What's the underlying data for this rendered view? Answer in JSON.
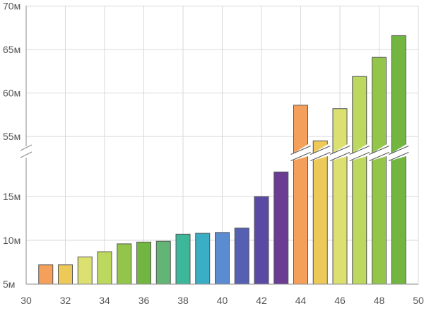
{
  "chart_data": {
    "type": "bar",
    "title": "",
    "xlabel": "",
    "ylabel": "",
    "xlim": [
      30,
      50
    ],
    "x_ticks": [
      "30",
      "32",
      "34",
      "36",
      "38",
      "40",
      "42",
      "44",
      "46",
      "48",
      "50"
    ],
    "y_ticks_lower": [
      {
        "value": 5000000,
        "label": "5м"
      },
      {
        "value": 10000000,
        "label": "10м"
      },
      {
        "value": 15000000,
        "label": "15м"
      }
    ],
    "y_ticks_upper": [
      {
        "value": 55000000,
        "label": "55м"
      },
      {
        "value": 60000000,
        "label": "60м"
      },
      {
        "value": 65000000,
        "label": "65м"
      },
      {
        "value": 70000000,
        "label": "70м"
      }
    ],
    "axis_break": true,
    "grid": "horizontal",
    "points": [
      {
        "x": 31,
        "y": 7200000,
        "color": "#f5a05a"
      },
      {
        "x": 32,
        "y": 7200000,
        "color": "#edc95a"
      },
      {
        "x": 33,
        "y": 8100000,
        "color": "#dbe070"
      },
      {
        "x": 34,
        "y": 8700000,
        "color": "#bcd85e"
      },
      {
        "x": 35,
        "y": 9600000,
        "color": "#93c54b"
      },
      {
        "x": 36,
        "y": 9800000,
        "color": "#72b540"
      },
      {
        "x": 37,
        "y": 9900000,
        "color": "#62b574"
      },
      {
        "x": 38,
        "y": 10700000,
        "color": "#3db79a"
      },
      {
        "x": 39,
        "y": 10800000,
        "color": "#3aaec4"
      },
      {
        "x": 40,
        "y": 10900000,
        "color": "#5b8bd0"
      },
      {
        "x": 41,
        "y": 11400000,
        "color": "#5560b2"
      },
      {
        "x": 42,
        "y": 15000000,
        "color": "#5b4aa3"
      },
      {
        "x": 43,
        "y": 17800000,
        "color": "#6a3c92"
      },
      {
        "x": 44,
        "y": 58600000,
        "color": "#f5a05a"
      },
      {
        "x": 45,
        "y": 54500000,
        "color": "#edc95a"
      },
      {
        "x": 46,
        "y": 58200000,
        "color": "#dbe070"
      },
      {
        "x": 47,
        "y": 61900000,
        "color": "#bcd85e"
      },
      {
        "x": 48,
        "y": 64100000,
        "color": "#93c54b"
      },
      {
        "x": 49,
        "y": 66600000,
        "color": "#72b540"
      }
    ]
  }
}
